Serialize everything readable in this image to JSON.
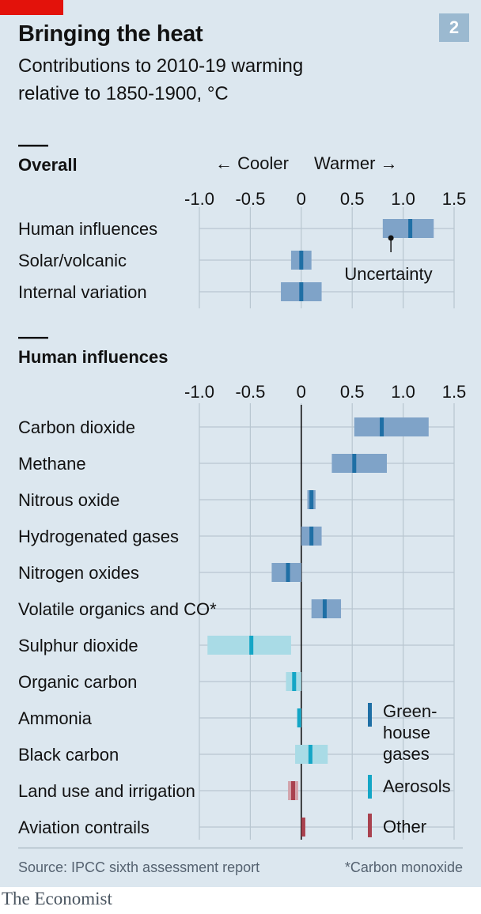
{
  "header": {
    "badge": "2",
    "title": "Bringing the heat",
    "subtitle_line1": "Contributions to 2010-19 warming",
    "subtitle_line2": "relative to 1850-1900, °C"
  },
  "overall": {
    "section_label": "Overall",
    "cooler_label": "← Cooler",
    "warmer_label": "Warmer →",
    "uncertainty_label": "Uncertainty"
  },
  "human": {
    "section_label": "Human influences"
  },
  "legend": {
    "ghg": [
      "Green-",
      "house",
      "gases"
    ],
    "aerosols": "Aerosols",
    "other": "Other"
  },
  "footer": {
    "source": "Source: IPCC sixth assessment report",
    "note": "*Carbon monoxide",
    "brand": "The Economist"
  },
  "colors": {
    "ghg_range": "#7fa3c8",
    "ghg_mark": "#1f6fa5",
    "aerosol_range": "#a9dbe6",
    "aerosol_mark": "#14a6c6",
    "other_range": "#d3a3ab",
    "other_mark": "#a9424f"
  },
  "chart_data": [
    {
      "type": "range",
      "section": "Overall",
      "xlim": [
        -1.0,
        1.5
      ],
      "ticks": [
        "-1.0",
        "-0.5",
        "0",
        "0.5",
        "1.0",
        "1.5"
      ],
      "tick_values": [
        -1.0,
        -0.5,
        0,
        0.5,
        1.0,
        1.5
      ],
      "categories": [
        "Human influences",
        "Solar/volcanic",
        "Internal variation"
      ],
      "series": [
        {
          "values": [
            1.07,
            0.0,
            0.0
          ],
          "low": [
            0.8,
            -0.1,
            -0.2
          ],
          "high": [
            1.3,
            0.1,
            0.2
          ],
          "group": [
            "ghg",
            "ghg",
            "ghg"
          ]
        }
      ]
    },
    {
      "type": "range",
      "section": "Human influences",
      "xlim": [
        -1.0,
        1.5
      ],
      "ticks": [
        "-1.0",
        "-0.5",
        "0",
        "0.5",
        "1.0",
        "1.5"
      ],
      "tick_values": [
        -1.0,
        -0.5,
        0,
        0.5,
        1.0,
        1.5
      ],
      "categories": [
        "Carbon dioxide",
        "Methane",
        "Nitrous oxide",
        "Hydrogenated gases",
        "Nitrogen oxides",
        "Volatile organics and CO*",
        "Sulphur dioxide",
        "Organic carbon",
        "Ammonia",
        "Black carbon",
        "Land use and irrigation",
        "Aviation contrails"
      ],
      "series": [
        {
          "values": [
            0.79,
            0.52,
            0.1,
            0.1,
            -0.13,
            0.23,
            -0.49,
            -0.07,
            -0.02,
            0.09,
            -0.08,
            0.02
          ],
          "low": [
            0.52,
            0.3,
            0.06,
            0.0,
            -0.29,
            0.1,
            -0.92,
            -0.15,
            -0.04,
            -0.06,
            -0.13,
            0.01
          ],
          "high": [
            1.25,
            0.84,
            0.14,
            0.2,
            0.0,
            0.39,
            -0.1,
            0.0,
            0.0,
            0.26,
            -0.03,
            0.04
          ],
          "group": [
            "ghg",
            "ghg",
            "ghg",
            "ghg",
            "ghg",
            "ghg",
            "aerosol",
            "aerosol",
            "aerosol",
            "aerosol",
            "other",
            "other"
          ]
        }
      ]
    }
  ]
}
